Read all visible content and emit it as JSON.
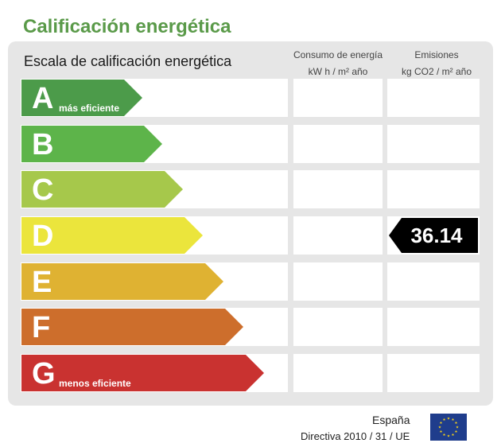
{
  "title": "Calificación energética",
  "scale_title": "Escala de calificación energética",
  "columns": {
    "consumo": {
      "line1": "Consumo de energía",
      "line2": "kW h / m² año"
    },
    "emisiones": {
      "line1": "Emisiones",
      "line2": "kg CO2 / m² año"
    }
  },
  "ratings": [
    {
      "letter": "A",
      "sub": "más eficiente",
      "color": "#4c9b4a"
    },
    {
      "letter": "B",
      "sub": "",
      "color": "#5db44a"
    },
    {
      "letter": "C",
      "sub": "",
      "color": "#a6c84b"
    },
    {
      "letter": "D",
      "sub": "",
      "color": "#ebe53c"
    },
    {
      "letter": "E",
      "sub": "",
      "color": "#dfb232"
    },
    {
      "letter": "F",
      "sub": "",
      "color": "#cd6e2c"
    },
    {
      "letter": "G",
      "sub": "menos eficiente",
      "color": "#c93230"
    }
  ],
  "emissions_value": {
    "rating": "D",
    "value": "36.14"
  },
  "footer": {
    "country": "España",
    "directive": "Directiva 2010 / 31 / UE"
  },
  "icons": {
    "flag": "eu-flag-icon"
  }
}
